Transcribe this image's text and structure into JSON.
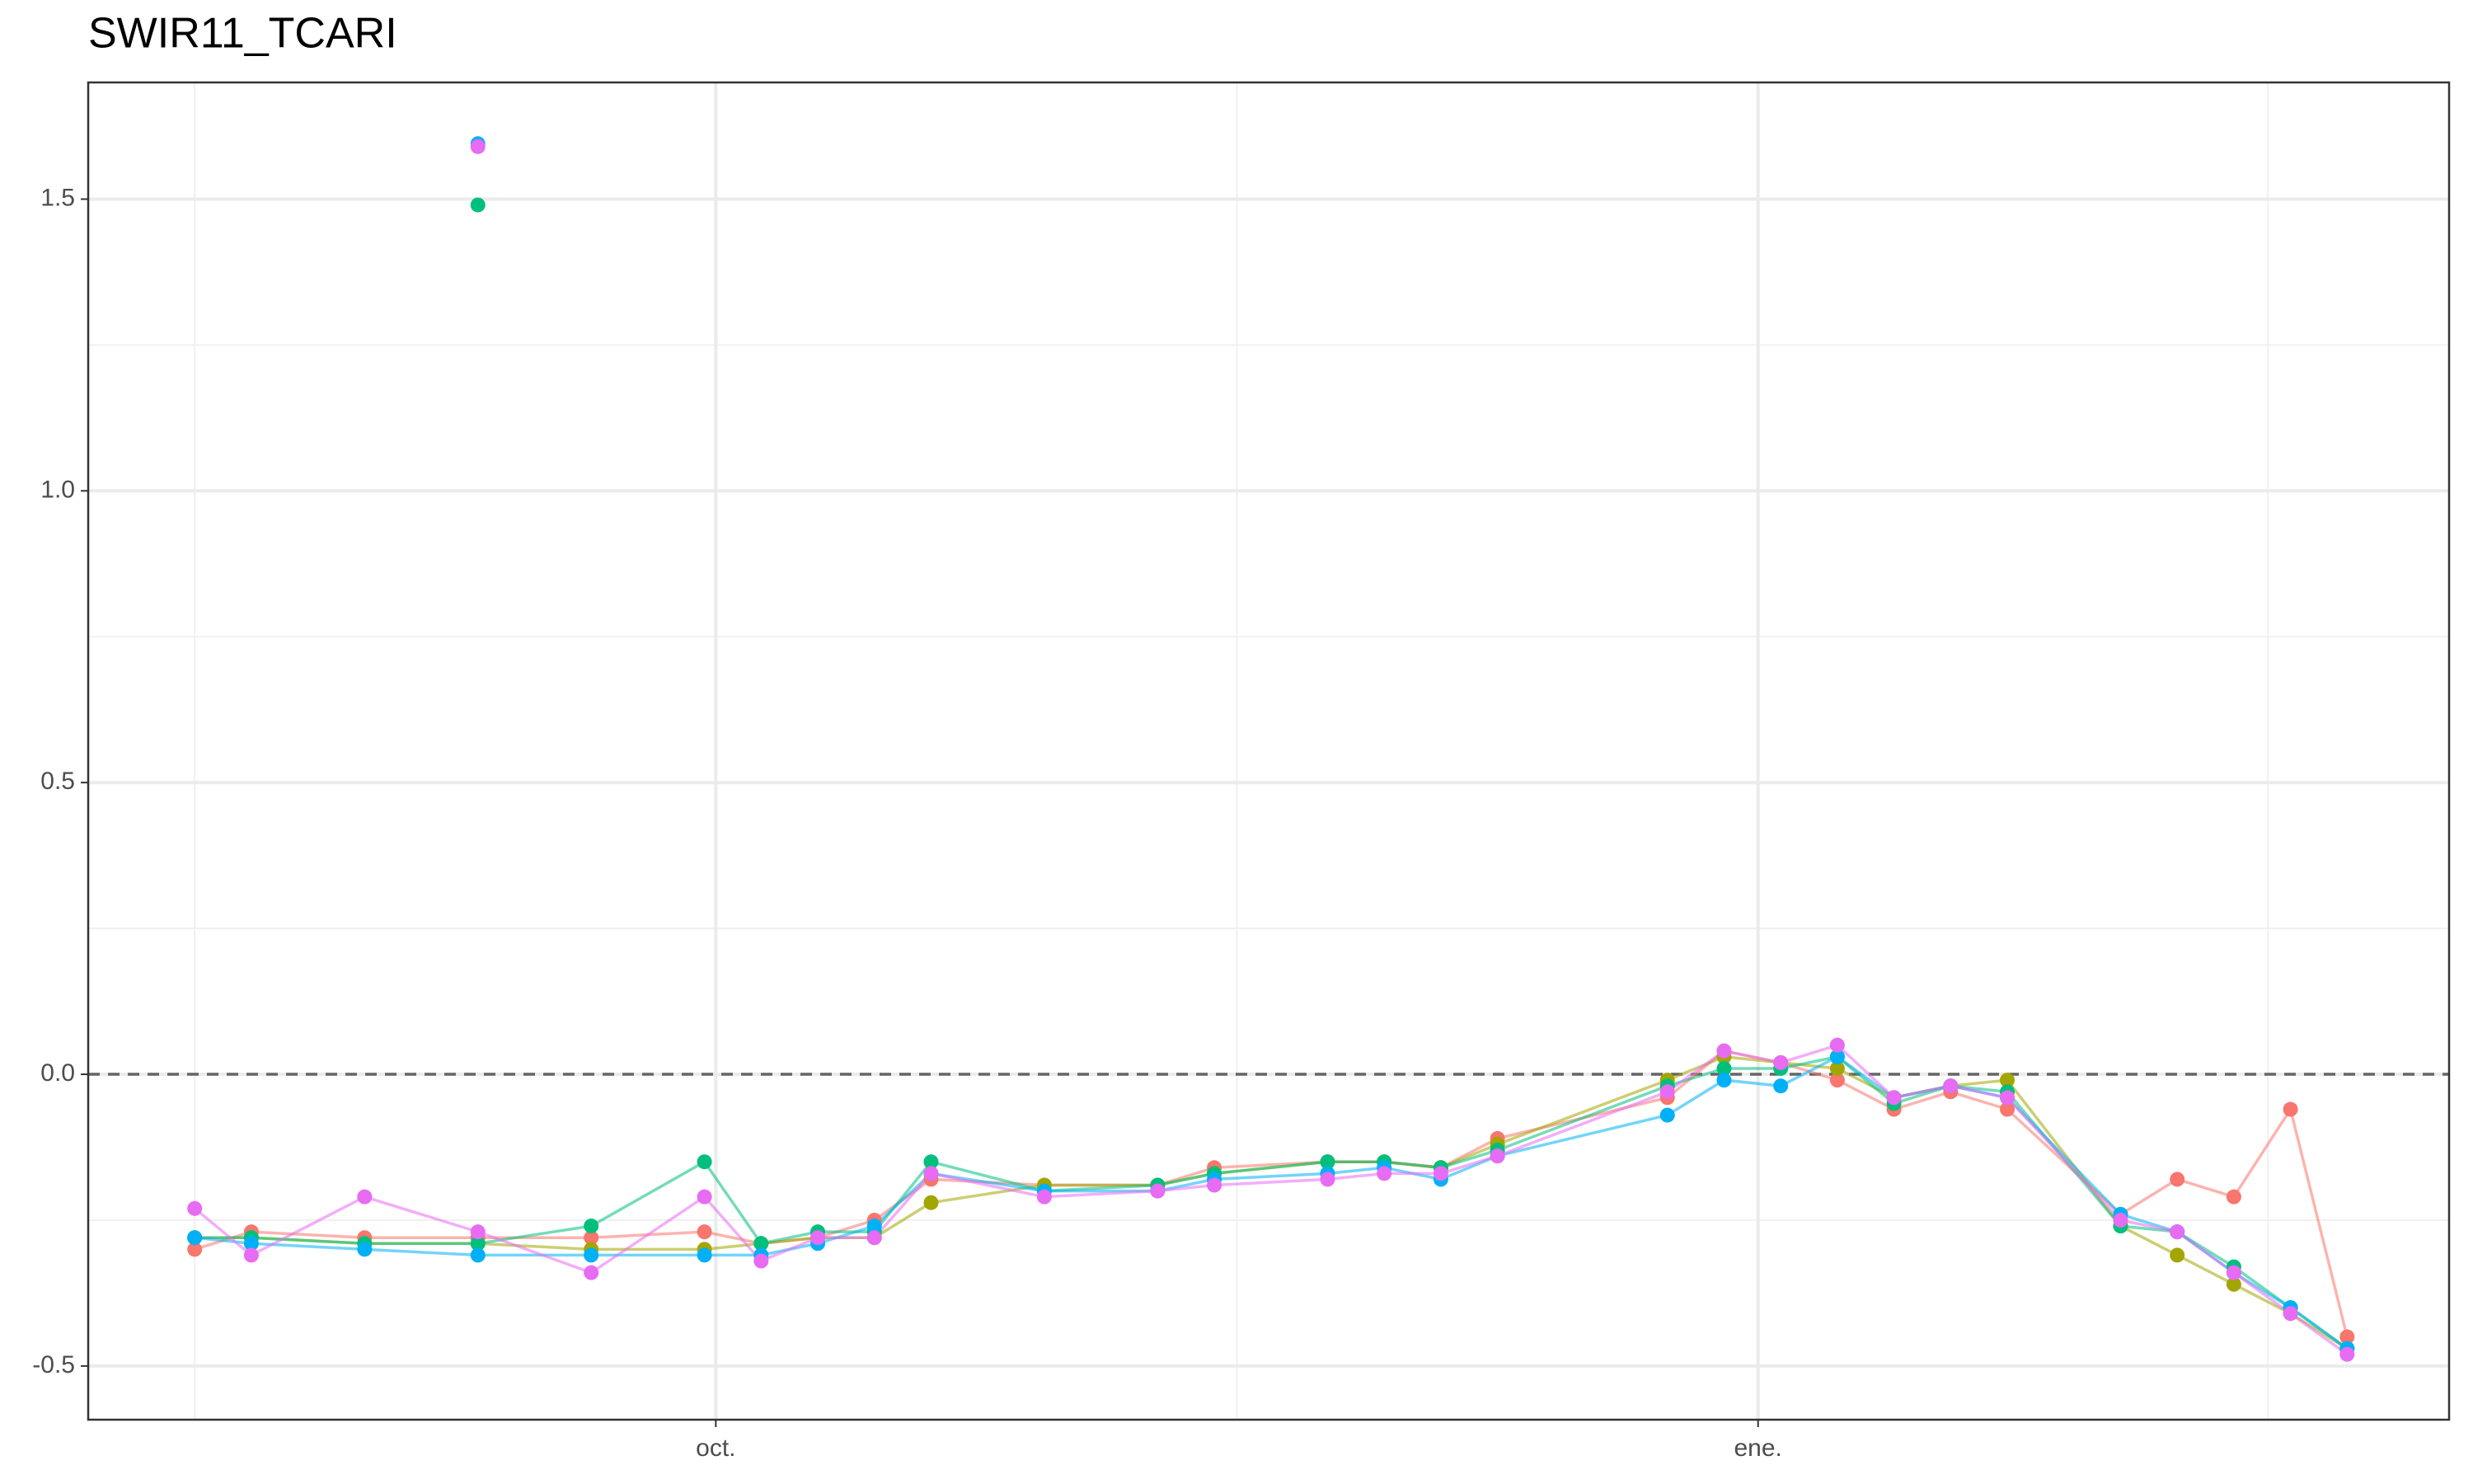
{
  "chart_data": {
    "type": "line",
    "title": "SWIR11_TCARI",
    "x": [
      -46,
      -41,
      -31,
      -21,
      -11,
      -1,
      4,
      9,
      14,
      19,
      29,
      39,
      44,
      54,
      59,
      64,
      69,
      84,
      89,
      94,
      99,
      104,
      109,
      114,
      124,
      129,
      134,
      139,
      144
    ],
    "xlim": [
      -55.4,
      153
    ],
    "xticks": [
      {
        "value": 0,
        "label": "oct."
      },
      {
        "value": 92,
        "label": "ene."
      }
    ],
    "xminorticks": [
      -46,
      46,
      137
    ],
    "ylim": [
      -0.592,
      1.7
    ],
    "yticks": [
      -0.5,
      0.0,
      0.5,
      1.0,
      1.5
    ],
    "yminorticks": [
      -0.25,
      0.25,
      0.75,
      1.25
    ],
    "hline": 0,
    "grid": true,
    "series": [
      {
        "color": "#F8766D",
        "mode": "lines+markers",
        "values": [
          -0.3,
          -0.27,
          -0.28,
          -0.28,
          -0.28,
          -0.27,
          -0.29,
          -0.28,
          -0.25,
          -0.18,
          -0.19,
          -0.19,
          -0.16,
          -0.15,
          -0.15,
          -0.16,
          -0.11,
          -0.04,
          0.04,
          0.02,
          -0.01,
          -0.06,
          -0.03,
          -0.06,
          -0.24,
          -0.18,
          -0.21,
          -0.06,
          -0.45
        ]
      },
      {
        "color": "#A3A500",
        "mode": "lines+markers",
        "values": [
          -0.28,
          -0.28,
          -0.29,
          -0.29,
          -0.3,
          -0.3,
          -0.29,
          -0.28,
          -0.28,
          -0.22,
          -0.19,
          -0.19,
          -0.17,
          -0.15,
          -0.15,
          -0.16,
          -0.12,
          -0.01,
          0.03,
          0.02,
          0.01,
          -0.04,
          -0.02,
          -0.01,
          -0.26,
          -0.31,
          -0.36,
          -0.41,
          -0.47
        ]
      },
      {
        "color": "#00BF7D",
        "mode": "lines+markers",
        "values": [
          -0.28,
          -0.28,
          -0.29,
          -0.29,
          -0.26,
          -0.15,
          -0.29,
          -0.27,
          -0.27,
          -0.15,
          -0.2,
          -0.19,
          -0.17,
          -0.15,
          -0.15,
          -0.16,
          -0.13,
          -0.02,
          0.01,
          0.01,
          0.03,
          -0.05,
          -0.02,
          -0.03,
          -0.26,
          -0.27,
          -0.33,
          -0.4,
          -0.47
        ]
      },
      {
        "color": "#00B0F6",
        "mode": "lines+markers",
        "values": [
          -0.28,
          -0.29,
          -0.3,
          -0.31,
          -0.31,
          -0.31,
          -0.31,
          -0.29,
          -0.26,
          -0.17,
          -0.2,
          -0.2,
          -0.18,
          -0.17,
          -0.16,
          -0.18,
          -0.14,
          -0.07,
          -0.01,
          -0.02,
          0.03,
          -0.04,
          -0.02,
          -0.04,
          -0.24,
          -0.27,
          -0.34,
          -0.4,
          -0.47
        ]
      },
      {
        "color": "#E76BF3",
        "mode": "lines+markers",
        "values": [
          -0.23,
          -0.31,
          -0.21,
          -0.27,
          -0.34,
          -0.21,
          -0.32,
          -0.28,
          -0.28,
          -0.17,
          -0.21,
          -0.2,
          -0.19,
          -0.18,
          -0.17,
          -0.17,
          -0.14,
          -0.03,
          0.04,
          0.02,
          0.05,
          -0.04,
          -0.02,
          -0.04,
          -0.25,
          -0.27,
          -0.34,
          -0.41,
          -0.48
        ]
      },
      {
        "color": "#00BF7D",
        "mode": "markers",
        "values": [
          null,
          null,
          null,
          1.49,
          null,
          null,
          null,
          null,
          null,
          null,
          null,
          null,
          null,
          null,
          null,
          null,
          null,
          null,
          null,
          null,
          null,
          null,
          null,
          null,
          null,
          null,
          null,
          null,
          null
        ]
      },
      {
        "color": "#00B0F6",
        "mode": "markers",
        "values": [
          null,
          null,
          null,
          1.595,
          null,
          null,
          null,
          null,
          null,
          null,
          null,
          null,
          null,
          null,
          null,
          null,
          null,
          null,
          null,
          null,
          null,
          null,
          null,
          null,
          null,
          null,
          null,
          null,
          null
        ]
      },
      {
        "color": "#E76BF3",
        "mode": "markers",
        "values": [
          null,
          null,
          null,
          1.59,
          null,
          null,
          null,
          null,
          null,
          null,
          null,
          null,
          null,
          null,
          null,
          null,
          null,
          null,
          null,
          null,
          null,
          null,
          null,
          null,
          null,
          null,
          null,
          null,
          null
        ]
      }
    ]
  }
}
